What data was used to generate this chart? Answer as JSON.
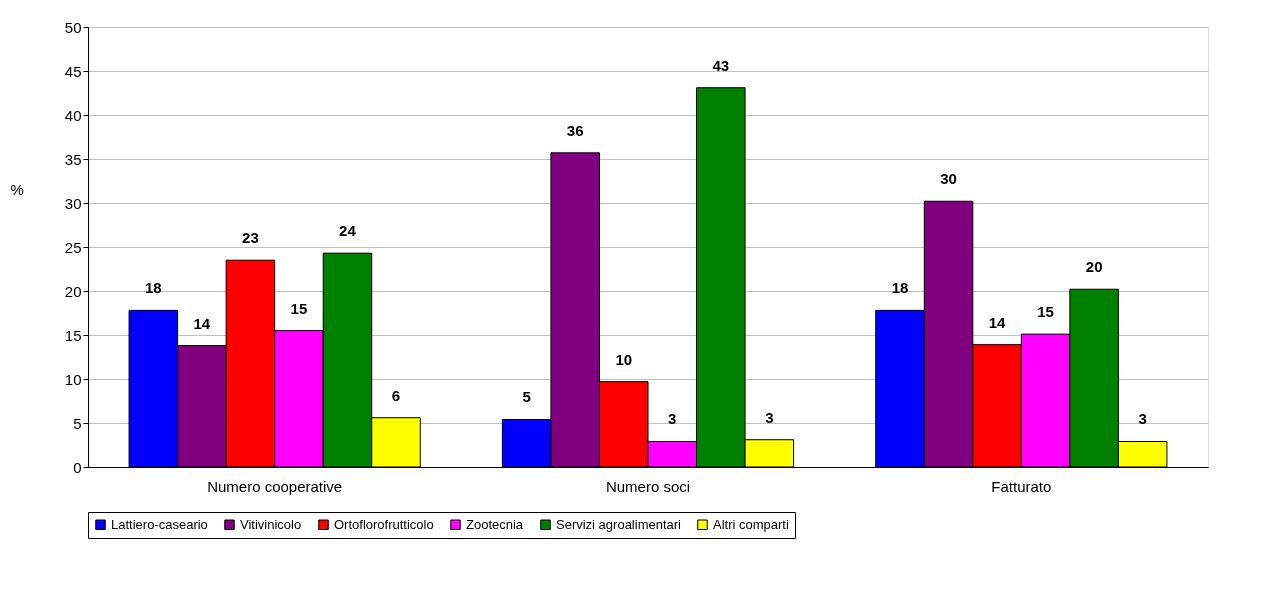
{
  "chart_data": {
    "type": "bar",
    "categories": [
      "Numero cooperative",
      "Numero soci",
      "Fatturato"
    ],
    "ylabel": "%",
    "ylim": [
      0,
      50
    ],
    "yticks": [
      0,
      5,
      10,
      15,
      20,
      25,
      30,
      35,
      40,
      45,
      50
    ],
    "grid": "y",
    "legend": "bottom",
    "series": [
      {
        "name": "Lattiero-caseario",
        "color": "#0000ff",
        "values": [
          17.8,
          5.4,
          17.8
        ],
        "value_labels": [
          "18",
          "5",
          "18"
        ]
      },
      {
        "name": "Vitivinicolo",
        "color": "#800080",
        "values": [
          13.8,
          35.7,
          30.2
        ],
        "value_labels": [
          "14",
          "36",
          "30"
        ]
      },
      {
        "name": "Ortoflorofrutticolo",
        "color": "#ff0000",
        "values": [
          23.5,
          9.7,
          13.9
        ],
        "value_labels": [
          "23",
          "10",
          "14"
        ]
      },
      {
        "name": "Zootecnia",
        "color": "#ff00ff",
        "values": [
          15.5,
          2.9,
          15.1
        ],
        "value_labels": [
          "15",
          "3",
          "15"
        ]
      },
      {
        "name": "Servizi agroalimentari",
        "color": "#008000",
        "values": [
          24.3,
          43.1,
          20.2
        ],
        "value_labels": [
          "24",
          "43",
          "20"
        ]
      },
      {
        "name": "Altri comparti",
        "color": "#ffff00",
        "values": [
          5.6,
          3.1,
          2.9
        ],
        "value_labels": [
          "6",
          "3",
          "3"
        ]
      }
    ]
  }
}
